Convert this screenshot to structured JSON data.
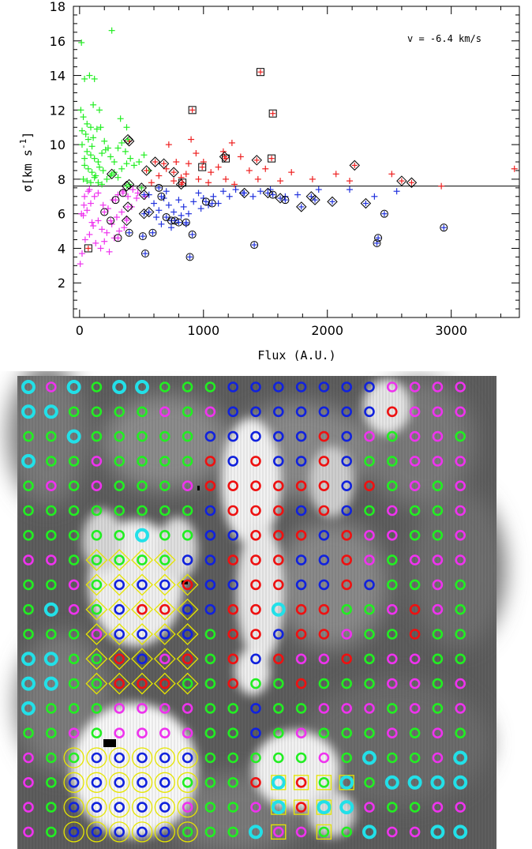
{
  "chart_data": [
    {
      "type": "scatter",
      "xlabel": "Flux (A.U.)",
      "ylabel": "σ[km s",
      "ylabel_sup": "-1",
      "ylabel_close": "]",
      "annotation": "v = -6.4 km/s",
      "xlim": [
        -50,
        3550
      ],
      "ylim": [
        0,
        18
      ],
      "x_ticks": [
        0,
        1000,
        2000,
        3000
      ],
      "y_ticks": [
        2,
        4,
        6,
        8,
        10,
        12,
        14,
        16,
        18
      ],
      "hline_y": 7.6,
      "colors": {
        "green": "#22ee22",
        "magenta": "#ee33ee",
        "red": "#ee2020",
        "blue": "#2233dd"
      },
      "series": [
        {
          "color_key": "green",
          "marker": "plus",
          "points": [
            [
              15,
              15.9
            ],
            [
              40,
              13.8
            ],
            [
              80,
              14.0
            ],
            [
              120,
              13.8
            ],
            [
              260,
              16.6
            ],
            [
              10,
              12.0
            ],
            [
              30,
              11.6
            ],
            [
              60,
              11.2
            ],
            [
              90,
              11.0
            ],
            [
              20,
              10.8
            ],
            [
              50,
              10.6
            ],
            [
              110,
              10.4
            ],
            [
              140,
              10.9
            ],
            [
              170,
              11.0
            ],
            [
              200,
              10.2
            ],
            [
              230,
              9.8
            ],
            [
              60,
              9.6
            ],
            [
              90,
              9.4
            ],
            [
              120,
              9.2
            ],
            [
              150,
              9.0
            ],
            [
              180,
              9.5
            ],
            [
              210,
              9.7
            ],
            [
              250,
              9.3
            ],
            [
              280,
              9.0
            ],
            [
              310,
              9.8
            ],
            [
              340,
              10.1
            ],
            [
              370,
              9.6
            ],
            [
              40,
              8.8
            ],
            [
              70,
              8.6
            ],
            [
              100,
              8.4
            ],
            [
              130,
              8.2
            ],
            [
              160,
              8.7
            ],
            [
              190,
              8.5
            ],
            [
              220,
              8.0
            ],
            [
              250,
              8.2
            ],
            [
              280,
              8.4
            ],
            [
              310,
              8.1
            ],
            [
              340,
              8.6
            ],
            [
              380,
              8.9
            ],
            [
              410,
              9.2
            ],
            [
              440,
              8.8
            ],
            [
              480,
              9.0
            ],
            [
              520,
              9.4
            ],
            [
              560,
              8.5
            ],
            [
              30,
              8.0
            ],
            [
              60,
              7.9
            ],
            [
              90,
              7.8
            ],
            [
              120,
              8.1
            ],
            [
              150,
              7.8
            ],
            [
              180,
              7.7
            ],
            [
              20,
              10.0
            ],
            [
              40,
              9.2
            ],
            [
              70,
              10.3
            ],
            [
              100,
              9.9
            ],
            [
              330,
              11.5
            ],
            [
              160,
              12.0
            ],
            [
              110,
              12.3
            ],
            [
              380,
              11.0
            ]
          ]
        },
        {
          "color_key": "magenta",
          "marker": "plus",
          "points": [
            [
              5,
              3.1
            ],
            [
              20,
              3.7
            ],
            [
              45,
              4.5
            ],
            [
              80,
              4.8
            ],
            [
              110,
              5.3
            ],
            [
              150,
              5.6
            ],
            [
              180,
              5.1
            ],
            [
              220,
              4.9
            ],
            [
              260,
              5.4
            ],
            [
              300,
              5.8
            ],
            [
              340,
              6.1
            ],
            [
              380,
              5.7
            ],
            [
              420,
              6.4
            ],
            [
              460,
              6.9
            ],
            [
              30,
              5.9
            ],
            [
              60,
              6.2
            ],
            [
              90,
              6.6
            ],
            [
              120,
              7.0
            ],
            [
              150,
              7.2
            ],
            [
              190,
              6.5
            ],
            [
              230,
              6.3
            ],
            [
              270,
              6.8
            ],
            [
              310,
              7.1
            ],
            [
              350,
              7.3
            ],
            [
              390,
              7.0
            ],
            [
              430,
              7.4
            ],
            [
              470,
              7.2
            ],
            [
              15,
              6.0
            ],
            [
              35,
              6.5
            ],
            [
              70,
              7.3
            ],
            [
              100,
              5.5
            ],
            [
              130,
              4.3
            ],
            [
              170,
              4.0
            ],
            [
              200,
              4.4
            ],
            [
              240,
              3.8
            ],
            [
              280,
              4.6
            ],
            [
              320,
              5.0
            ],
            [
              360,
              5.2
            ],
            [
              40,
              7.0
            ],
            [
              80,
              7.4
            ],
            [
              500,
              7.5
            ],
            [
              530,
              7.0
            ]
          ]
        },
        {
          "color_key": "red",
          "marker": "plus",
          "points": [
            [
              580,
              7.8
            ],
            [
              640,
              8.2
            ],
            [
              700,
              8.6
            ],
            [
              760,
              7.9
            ],
            [
              820,
              8.1
            ],
            [
              880,
              8.9
            ],
            [
              940,
              9.5
            ],
            [
              1000,
              9.0
            ],
            [
              1060,
              8.4
            ],
            [
              1120,
              8.7
            ],
            [
              1160,
              9.6
            ],
            [
              1230,
              10.1
            ],
            [
              1300,
              9.3
            ],
            [
              1370,
              8.5
            ],
            [
              1440,
              8.0
            ],
            [
              1500,
              8.6
            ],
            [
              1620,
              7.9
            ],
            [
              1710,
              8.4
            ],
            [
              1880,
              8.0
            ],
            [
              2070,
              8.3
            ],
            [
              2180,
              7.9
            ],
            [
              2520,
              8.3
            ],
            [
              2920,
              7.6
            ],
            [
              3510,
              8.6
            ],
            [
              900,
              10.3
            ],
            [
              960,
              8.0
            ],
            [
              1040,
              7.8
            ],
            [
              1180,
              8.0
            ],
            [
              1250,
              7.7
            ],
            [
              720,
              10.0
            ],
            [
              780,
              9.0
            ],
            [
              860,
              8.3
            ]
          ]
        },
        {
          "color_key": "blue",
          "marker": "plus",
          "points": [
            [
              560,
              7.1
            ],
            [
              600,
              6.6
            ],
            [
              640,
              6.2
            ],
            [
              680,
              6.9
            ],
            [
              720,
              6.5
            ],
            [
              760,
              6.1
            ],
            [
              800,
              6.8
            ],
            [
              840,
              6.4
            ],
            [
              880,
              6.0
            ],
            [
              920,
              6.7
            ],
            [
              960,
              7.2
            ],
            [
              1000,
              6.9
            ],
            [
              1040,
              6.5
            ],
            [
              1080,
              7.0
            ],
            [
              1120,
              6.6
            ],
            [
              1160,
              7.3
            ],
            [
              1210,
              7.0
            ],
            [
              1260,
              7.4
            ],
            [
              1320,
              7.2
            ],
            [
              1400,
              7.0
            ],
            [
              1460,
              7.3
            ],
            [
              1540,
              7.4
            ],
            [
              1660,
              7.0
            ],
            [
              1760,
              7.1
            ],
            [
              1930,
              7.4
            ],
            [
              2180,
              7.4
            ],
            [
              2380,
              7.0
            ],
            [
              2560,
              7.3
            ],
            [
              700,
              7.3
            ],
            [
              620,
              5.8
            ],
            [
              660,
              5.4
            ],
            [
              740,
              5.2
            ],
            [
              820,
              5.9
            ],
            [
              860,
              5.4
            ],
            [
              980,
              6.3
            ]
          ]
        }
      ],
      "boxed": [
        [
          70,
          4.0
        ],
        [
          910,
          12.0
        ],
        [
          1460,
          14.2
        ],
        [
          1560,
          11.8
        ],
        [
          1550,
          9.2
        ],
        [
          1180,
          9.2
        ],
        [
          990,
          8.7
        ],
        [
          830,
          7.8
        ]
      ],
      "diamond_red": [
        [
          400,
          10.2
        ],
        [
          610,
          9.0
        ],
        [
          680,
          8.9
        ],
        [
          760,
          8.4
        ],
        [
          540,
          8.5
        ],
        [
          1430,
          9.1
        ],
        [
          2220,
          8.8
        ],
        [
          2600,
          7.9
        ],
        [
          2680,
          7.8
        ],
        [
          1170,
          9.3
        ],
        [
          820,
          7.7
        ]
      ],
      "diamond_green": [
        [
          390,
          10.3
        ],
        [
          260,
          8.3
        ],
        [
          400,
          7.7
        ],
        [
          380,
          7.6
        ],
        [
          500,
          7.5
        ]
      ],
      "diamond_magenta": [
        [
          390,
          6.4
        ],
        [
          380,
          5.6
        ]
      ],
      "diamond_blue": [
        [
          520,
          6.0
        ],
        [
          1330,
          7.2
        ],
        [
          1520,
          7.2
        ],
        [
          1620,
          6.9
        ],
        [
          1790,
          6.4
        ],
        [
          1870,
          7.0
        ],
        [
          1900,
          6.8
        ],
        [
          2040,
          6.7
        ],
        [
          2310,
          6.6
        ],
        [
          560,
          6.1
        ],
        [
          520,
          7.1
        ]
      ],
      "circle_cross_blue": [
        [
          530,
          3.7
        ],
        [
          590,
          4.9
        ],
        [
          700,
          5.8
        ],
        [
          740,
          5.6
        ],
        [
          770,
          5.6
        ],
        [
          800,
          5.5
        ],
        [
          860,
          5.5
        ],
        [
          910,
          4.8
        ],
        [
          890,
          3.5
        ],
        [
          1020,
          6.7
        ],
        [
          1070,
          6.6
        ],
        [
          1410,
          4.2
        ],
        [
          1660,
          6.8
        ],
        [
          2400,
          4.3
        ],
        [
          2410,
          4.6
        ],
        [
          2460,
          6.0
        ],
        [
          2940,
          5.2
        ],
        [
          400,
          4.9
        ],
        [
          510,
          4.7
        ],
        [
          1560,
          7.1
        ],
        [
          640,
          7.5
        ],
        [
          660,
          7.0
        ]
      ],
      "circle_cross_magenta": [
        [
          290,
          6.8
        ],
        [
          200,
          6.1
        ],
        [
          350,
          7.2
        ],
        [
          310,
          4.6
        ],
        [
          250,
          5.6
        ]
      ]
    },
    {
      "type": "heatmap",
      "title": "",
      "cols": 20,
      "rows": 19,
      "legend": {
        "c": "cyan",
        "g": "green",
        "m": "magenta",
        "b": "blue",
        "r": "red"
      },
      "colors": {
        "c": "#22e0e8",
        "g": "#22ee22",
        "m": "#ee33ee",
        "b": "#1122dd",
        "r": "#ee1111",
        "overlay": "#e6e600"
      },
      "grid": [
        "cmcgccgggbbbbbbbmmmm",
        "ccggggmgmbbbbbbbrmmm",
        "ggcgggggbbbbbrbmgmmg",
        "cggmggggrbrbbrbggmmm",
        "gmgmgggmrrrrrrbrgmgm",
        "ggggggggbrrrbrbgmggm",
        "gggggcggbbrrrbrmmggm",
        "mmgggggbbrrrbbrmgmmm",
        "ggmgbbbrbbrrbbrbggmg",
        "gcmgbrrbbrrcrrggmrmg",
        "gggmbbbbgrrbrrmggrgg",
        "ccggrbmrgrbrmmrgmmgg",
        "ccggrrrggrggrgggmmgm",
        "cgggmmmmggbggmmmgmgm",
        "ggmgmmmmggbgmgggmgmg",
        "mggbbbbbgggggmgcggmc",
        "mgbbbbbgggrcrgcgcccc",
        "mgbbbbbmggmcrccmggmm",
        "mgbbbbbgggcmmggcmmcc"
      ],
      "diamond_cells": [
        [
          3,
          7
        ],
        [
          4,
          7
        ],
        [
          5,
          7
        ],
        [
          6,
          7
        ],
        [
          3,
          8
        ],
        [
          4,
          8
        ],
        [
          5,
          8
        ],
        [
          6,
          8
        ],
        [
          7,
          8
        ],
        [
          3,
          9
        ],
        [
          4,
          9
        ],
        [
          5,
          9
        ],
        [
          6,
          9
        ],
        [
          7,
          9
        ],
        [
          3,
          10
        ],
        [
          4,
          10
        ],
        [
          5,
          10
        ],
        [
          6,
          10
        ],
        [
          7,
          10
        ],
        [
          3,
          11
        ],
        [
          4,
          11
        ],
        [
          5,
          11
        ],
        [
          6,
          11
        ],
        [
          7,
          11
        ],
        [
          3,
          12
        ],
        [
          4,
          12
        ],
        [
          5,
          12
        ],
        [
          6,
          12
        ],
        [
          7,
          12
        ]
      ],
      "ring_cells": [
        [
          2,
          15
        ],
        [
          3,
          15
        ],
        [
          4,
          15
        ],
        [
          5,
          15
        ],
        [
          6,
          15
        ],
        [
          7,
          15
        ],
        [
          2,
          16
        ],
        [
          3,
          16
        ],
        [
          4,
          16
        ],
        [
          5,
          16
        ],
        [
          6,
          16
        ],
        [
          7,
          16
        ],
        [
          2,
          17
        ],
        [
          3,
          17
        ],
        [
          4,
          17
        ],
        [
          5,
          17
        ],
        [
          6,
          17
        ],
        [
          7,
          17
        ],
        [
          2,
          18
        ],
        [
          3,
          18
        ],
        [
          4,
          18
        ],
        [
          5,
          18
        ],
        [
          6,
          18
        ],
        [
          7,
          18
        ]
      ],
      "square_cells": [
        [
          11,
          16
        ],
        [
          12,
          16
        ],
        [
          13,
          16
        ],
        [
          14,
          16
        ],
        [
          11,
          17
        ],
        [
          12,
          17
        ],
        [
          13,
          17
        ],
        [
          11,
          18
        ],
        [
          13,
          18
        ]
      ]
    }
  ]
}
